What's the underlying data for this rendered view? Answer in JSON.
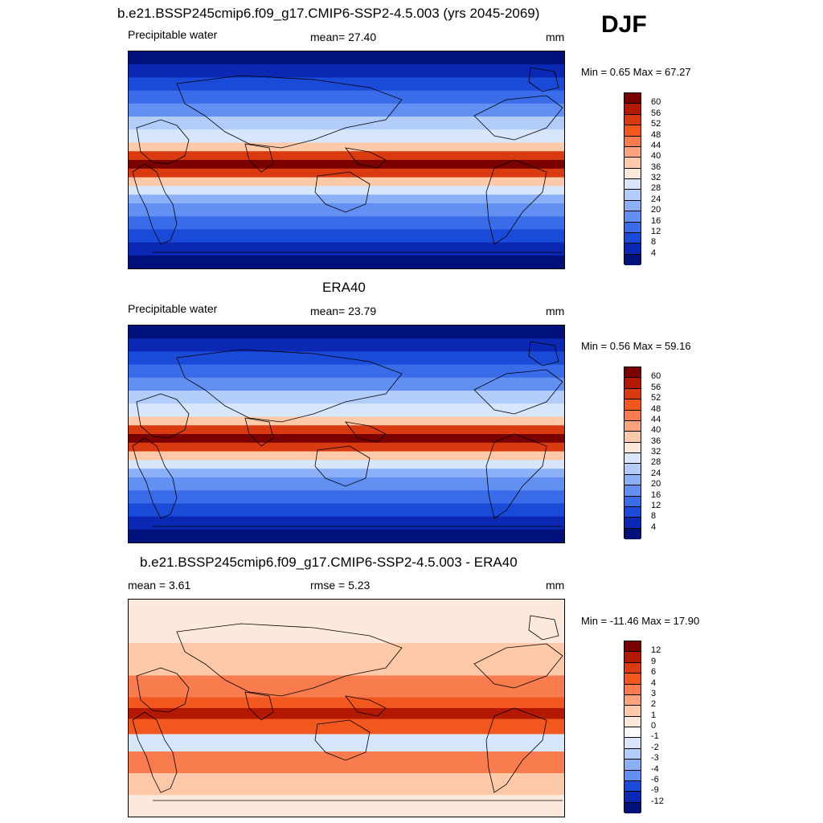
{
  "season": "DJF",
  "panels": [
    {
      "title": "b.e21.BSSP245cmip6.f09_g17.CMIP6-SSP2-4.5.003 (yrs 2045-2069)",
      "left_label": "Precipitable water",
      "center_label": "mean=  27.40",
      "units": "mm",
      "minmax": "Min =   0.65 Max =  67.27",
      "colorbar": {
        "ticks": [
          "60",
          "56",
          "52",
          "48",
          "44",
          "40",
          "36",
          "32",
          "28",
          "24",
          "20",
          "16",
          "12",
          "8",
          "4"
        ],
        "colors": [
          "#7a0000",
          "#b31800",
          "#d93a10",
          "#f2581e",
          "#f87c4e",
          "#fba37e",
          "#fdc9a8",
          "#fde9dc",
          "#d8e6fb",
          "#b3cdfb",
          "#8cb0f8",
          "#6290f2",
          "#3a6cea",
          "#1a4ad8",
          "#0a28b4",
          "#00107a"
        ]
      },
      "map_style": "full"
    },
    {
      "title": "ERA40",
      "left_label": "Precipitable water",
      "center_label": "mean=  23.79",
      "units": "mm",
      "minmax": "Min =   0.56 Max =  59.16",
      "colorbar": {
        "ticks": [
          "60",
          "56",
          "52",
          "48",
          "44",
          "40",
          "36",
          "32",
          "28",
          "24",
          "20",
          "16",
          "12",
          "8",
          "4"
        ],
        "colors": [
          "#7a0000",
          "#b31800",
          "#d93a10",
          "#f2581e",
          "#f87c4e",
          "#fba37e",
          "#fdc9a8",
          "#fde9dc",
          "#d8e6fb",
          "#b3cdfb",
          "#8cb0f8",
          "#6290f2",
          "#3a6cea",
          "#1a4ad8",
          "#0a28b4",
          "#00107a"
        ]
      },
      "map_style": "full"
    },
    {
      "title": "b.e21.BSSP245cmip6.f09_g17.CMIP6-SSP2-4.5.003 - ERA40",
      "left_label": "mean =   3.61",
      "center_label": "rmse =   5.23",
      "units": "mm",
      "minmax": "Min = -11.46 Max =  17.90",
      "colorbar": {
        "ticks": [
          "12",
          "9",
          "6",
          "4",
          "3",
          "2",
          "1",
          "0",
          "-1",
          "-2",
          "-3",
          "-4",
          "-6",
          "-9",
          "-12"
        ],
        "colors": [
          "#7a0000",
          "#b31800",
          "#d93a10",
          "#f2581e",
          "#f87c4e",
          "#fba37e",
          "#fdc9a8",
          "#fde9dc",
          "#ffffff",
          "#d8e6fb",
          "#b3cdfb",
          "#8cb0f8",
          "#6290f2",
          "#1a4ad8",
          "#0a28b4",
          "#00107a"
        ]
      },
      "map_style": "diff"
    }
  ]
}
